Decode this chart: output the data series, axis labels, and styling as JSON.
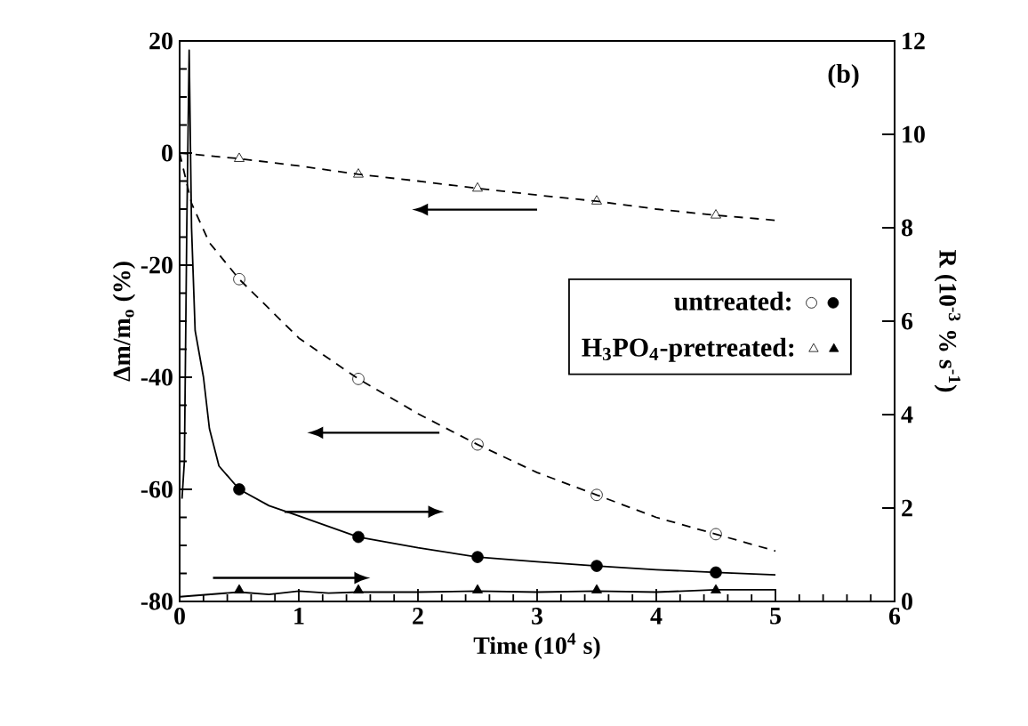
{
  "chart_data": {
    "type": "line",
    "xlabel": "Time (10$^{4}$ s)",
    "ylabel": "Δm/m$_{o}$ (%)",
    "y2label": "R (10$^{-3}$ % s$^{-1}$)",
    "annotations": [
      "(b)"
    ],
    "xlim": [
      0,
      6
    ],
    "xticks": [
      0,
      1,
      2,
      3,
      4,
      5,
      6
    ],
    "ylim": [
      -80,
      20
    ],
    "yticks": [
      -80,
      -60,
      -40,
      -20,
      0,
      20
    ],
    "y2lim": [
      0,
      12
    ],
    "y2ticks": [
      0,
      2,
      4,
      6,
      8,
      10,
      12
    ],
    "legend": "right",
    "series": [
      {
        "marker": "none",
        "line_style": "dashed",
        "color": "#000000",
        "x": [
          0,
          0.1,
          0.25,
          0.5,
          1,
          1.5,
          2,
          2.5,
          3,
          3.5,
          4,
          4.5,
          5
        ],
        "values": [
          0,
          -9,
          -16,
          -22.5,
          -33,
          -40.3,
          -46.5,
          -52,
          -57,
          -61,
          -65,
          -68,
          -71
        ]
      },
      {
        "marker": "none",
        "line_style": "dashed",
        "color": "#000000",
        "x": [
          0,
          0.5,
          1,
          1.5,
          2,
          2.5,
          3,
          3.5,
          4,
          4.5,
          5
        ],
        "values": [
          0,
          -1,
          -2.3,
          -3.8,
          -5,
          -6.3,
          -7.5,
          -8.6,
          -10,
          -11.1,
          -12
        ]
      },
      {
        "axis": "y2",
        "marker": "none",
        "line_style": "solid",
        "color": "#000000",
        "x": [
          0.02,
          0.04,
          0.06,
          0.08,
          0.1,
          0.13,
          0.2,
          0.25,
          0.33,
          0.5,
          0.75,
          1,
          1.5,
          2,
          2.5,
          3,
          3.5,
          4,
          4.5,
          5
        ],
        "values": [
          2.2,
          3,
          8,
          11.8,
          8,
          5.8,
          4.8,
          3.7,
          2.9,
          2.4,
          2.05,
          1.83,
          1.38,
          1.15,
          0.95,
          0.85,
          0.76,
          0.68,
          0.62,
          0.57
        ]
      },
      {
        "axis": "y2",
        "marker": "none",
        "line_style": "solid",
        "color": "#000000",
        "x": [
          0,
          0.25,
          0.5,
          0.75,
          1,
          1.25,
          1.5,
          2,
          2.5,
          3,
          3.5,
          4,
          4.5,
          5
        ],
        "values": [
          0.1,
          0.15,
          0.2,
          0.15,
          0.22,
          0.18,
          0.2,
          0.2,
          0.22,
          0.2,
          0.22,
          0.2,
          0.25,
          0.25
        ]
      },
      {
        "type": "scatter",
        "name": "untreated:",
        "marker": "circle",
        "color": "#000000",
        "x": [
          0.5,
          1.5,
          2.5,
          3.5,
          4.5
        ],
        "values": [
          -22.5,
          -40.3,
          -52,
          -61,
          -68
        ]
      },
      {
        "type": "scatter",
        "axis": "y2",
        "marker": "circle",
        "color": "#000000",
        "x": [
          0.5,
          1.5,
          2.5,
          3.5,
          4.5
        ],
        "values": [
          2.4,
          1.38,
          0.95,
          0.76,
          0.62
        ]
      },
      {
        "type": "scatter",
        "name": "H$_{3}$PO$_{4}$-pretreated:",
        "marker": "triangle",
        "color": "#000000",
        "x": [
          0.5,
          1.5,
          2.5,
          3.5,
          4.5
        ],
        "values": [
          -1,
          -3.8,
          -6.3,
          -8.6,
          -11.1
        ]
      },
      {
        "type": "scatter",
        "axis": "y2",
        "marker": "triangle",
        "color": "#000000",
        "x": [
          0.5,
          1.5,
          2.5,
          3.5,
          4.5
        ],
        "values": [
          0.24,
          0.24,
          0.24,
          0.24,
          0.24
        ]
      }
    ]
  }
}
